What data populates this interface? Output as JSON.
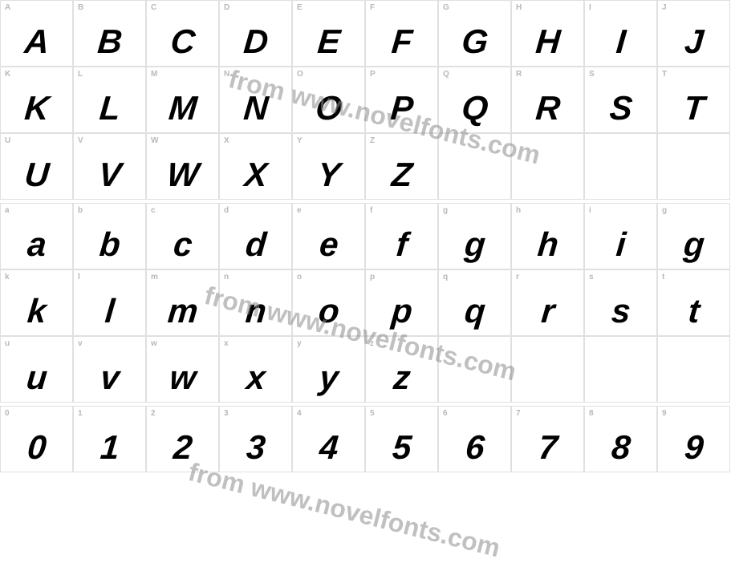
{
  "watermark_text": "from www.novelfonts.com",
  "watermark_color": "rgba(140,140,140,0.55)",
  "watermark_fontsize": 32,
  "grid_border_color": "#e0e0e0",
  "label_color": "#b8b8b8",
  "glyph_color": "#000000",
  "background_color": "#ffffff",
  "label_fontsize": 10,
  "glyph_fontsize": 42,
  "rows": [
    {
      "cells": [
        {
          "label": "A",
          "glyph": "A"
        },
        {
          "label": "B",
          "glyph": "B"
        },
        {
          "label": "C",
          "glyph": "C"
        },
        {
          "label": "D",
          "glyph": "D"
        },
        {
          "label": "E",
          "glyph": "E"
        },
        {
          "label": "F",
          "glyph": "F"
        },
        {
          "label": "G",
          "glyph": "G"
        },
        {
          "label": "H",
          "glyph": "H"
        },
        {
          "label": "I",
          "glyph": "I"
        },
        {
          "label": "J",
          "glyph": "J"
        }
      ]
    },
    {
      "cells": [
        {
          "label": "K",
          "glyph": "K"
        },
        {
          "label": "L",
          "glyph": "L"
        },
        {
          "label": "M",
          "glyph": "M"
        },
        {
          "label": "N",
          "glyph": "N"
        },
        {
          "label": "O",
          "glyph": "O"
        },
        {
          "label": "P",
          "glyph": "P"
        },
        {
          "label": "Q",
          "glyph": "Q"
        },
        {
          "label": "R",
          "glyph": "R"
        },
        {
          "label": "S",
          "glyph": "S"
        },
        {
          "label": "T",
          "glyph": "T"
        }
      ]
    },
    {
      "cells": [
        {
          "label": "U",
          "glyph": "U"
        },
        {
          "label": "V",
          "glyph": "V"
        },
        {
          "label": "W",
          "glyph": "W"
        },
        {
          "label": "X",
          "glyph": "X"
        },
        {
          "label": "Y",
          "glyph": "Y"
        },
        {
          "label": "Z",
          "glyph": "Z"
        },
        {
          "label": "",
          "glyph": "",
          "empty": true
        },
        {
          "label": "",
          "glyph": "",
          "empty": true
        },
        {
          "label": "",
          "glyph": "",
          "empty": true
        },
        {
          "label": "",
          "glyph": "",
          "empty": true
        }
      ]
    },
    {
      "spacer": true
    },
    {
      "cells": [
        {
          "label": "a",
          "glyph": "a"
        },
        {
          "label": "b",
          "glyph": "b"
        },
        {
          "label": "c",
          "glyph": "c"
        },
        {
          "label": "d",
          "glyph": "d"
        },
        {
          "label": "e",
          "glyph": "e"
        },
        {
          "label": "f",
          "glyph": "f"
        },
        {
          "label": "g",
          "glyph": "g"
        },
        {
          "label": "h",
          "glyph": "h"
        },
        {
          "label": "i",
          "glyph": "i"
        },
        {
          "label": "g",
          "glyph": "g"
        }
      ]
    },
    {
      "cells": [
        {
          "label": "k",
          "glyph": "k"
        },
        {
          "label": "l",
          "glyph": "l"
        },
        {
          "label": "m",
          "glyph": "m"
        },
        {
          "label": "n",
          "glyph": "n"
        },
        {
          "label": "o",
          "glyph": "o"
        },
        {
          "label": "p",
          "glyph": "p"
        },
        {
          "label": "q",
          "glyph": "q"
        },
        {
          "label": "r",
          "glyph": "r"
        },
        {
          "label": "s",
          "glyph": "s"
        },
        {
          "label": "t",
          "glyph": "t"
        }
      ]
    },
    {
      "cells": [
        {
          "label": "u",
          "glyph": "u"
        },
        {
          "label": "v",
          "glyph": "v"
        },
        {
          "label": "w",
          "glyph": "w"
        },
        {
          "label": "x",
          "glyph": "x"
        },
        {
          "label": "y",
          "glyph": "y"
        },
        {
          "label": "z",
          "glyph": "z"
        },
        {
          "label": "",
          "glyph": "",
          "empty": true
        },
        {
          "label": "",
          "glyph": "",
          "empty": true
        },
        {
          "label": "",
          "glyph": "",
          "empty": true
        },
        {
          "label": "",
          "glyph": "",
          "empty": true
        }
      ]
    },
    {
      "spacer": true
    },
    {
      "cells": [
        {
          "label": "0",
          "glyph": "0"
        },
        {
          "label": "1",
          "glyph": "1"
        },
        {
          "label": "2",
          "glyph": "2"
        },
        {
          "label": "3",
          "glyph": "3"
        },
        {
          "label": "4",
          "glyph": "4"
        },
        {
          "label": "5",
          "glyph": "5"
        },
        {
          "label": "6",
          "glyph": "6"
        },
        {
          "label": "7",
          "glyph": "7"
        },
        {
          "label": "8",
          "glyph": "8"
        },
        {
          "label": "9",
          "glyph": "9"
        }
      ]
    }
  ]
}
